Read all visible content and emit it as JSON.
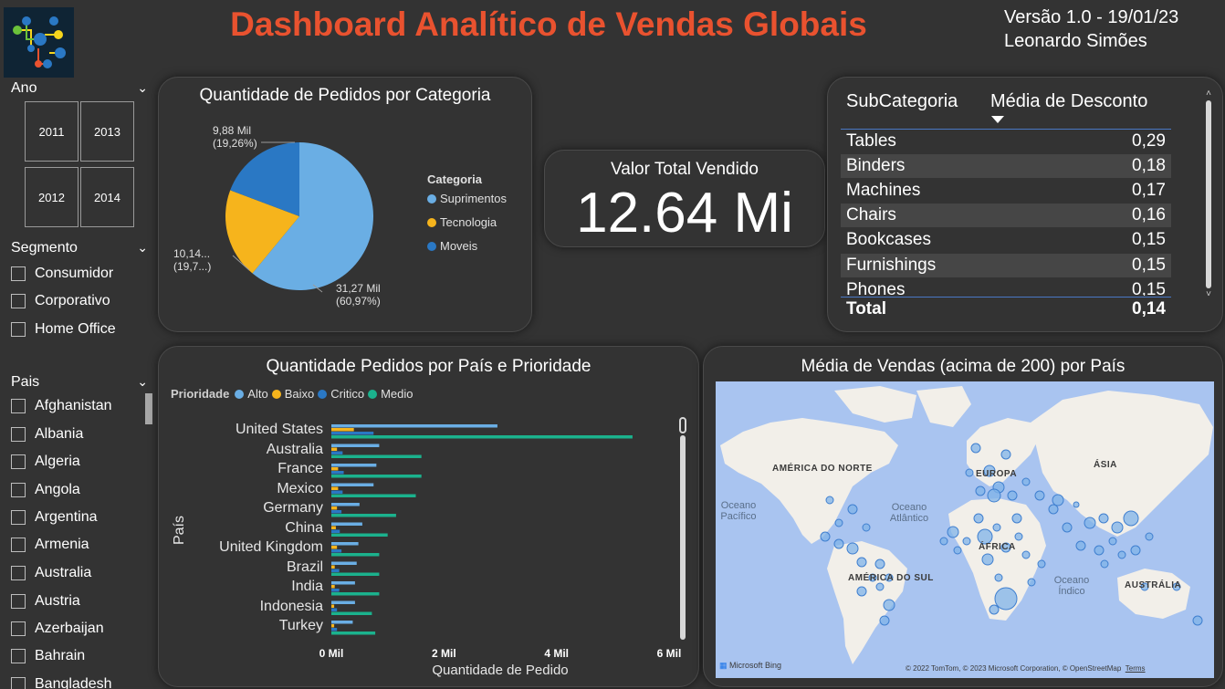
{
  "header": {
    "title": "Dashboard Analítico de Vendas Globais",
    "version": "Versão 1.0 - 19/01/23",
    "author": "Leonardo Simões",
    "title_color": "#e9522f"
  },
  "slicers": {
    "ano": {
      "label": "Ano",
      "years": [
        "2011",
        "2013",
        "2012",
        "2014"
      ]
    },
    "segmento": {
      "label": "Segmento",
      "items": [
        "Consumidor",
        "Corporativo",
        "Home Office"
      ]
    },
    "pais": {
      "label": "Pais",
      "items": [
        "Afghanistan",
        "Albania",
        "Algeria",
        "Angola",
        "Argentina",
        "Armenia",
        "Australia",
        "Austria",
        "Azerbaijan",
        "Bahrain",
        "Bangladesh"
      ]
    }
  },
  "pie": {
    "title": "Quantidade de Pedidos por Categoria",
    "legend_title": "Categoria",
    "labels": [
      {
        "value": "9,88 Mil",
        "pct": "(19,26%)"
      },
      {
        "value": "10,14...",
        "pct": "(19,7...)"
      },
      {
        "value": "31,27 Mil",
        "pct": "(60,97%)"
      }
    ],
    "chart_data": {
      "type": "pie",
      "slices": [
        {
          "name": "Suprimentos",
          "value": 31.27,
          "color": "#6aaee4"
        },
        {
          "name": "Tecnologia",
          "value": 10.14,
          "color": "#f6b41c"
        },
        {
          "name": "Moveis",
          "value": 9.88,
          "color": "#2a78c4"
        }
      ]
    }
  },
  "kpi": {
    "title": "Valor Total Vendido",
    "value": "12.64 Mi"
  },
  "table": {
    "col1": "SubCategoria",
    "col2": "Média de Desconto",
    "rows": [
      {
        "name": "Tables",
        "value": "0,29"
      },
      {
        "name": "Binders",
        "value": "0,18"
      },
      {
        "name": "Machines",
        "value": "0,17"
      },
      {
        "name": "Chairs",
        "value": "0,16"
      },
      {
        "name": "Bookcases",
        "value": "0,15"
      },
      {
        "name": "Furnishings",
        "value": "0,15"
      },
      {
        "name": "Phones",
        "value": "0,15"
      }
    ],
    "total_label": "Total",
    "total_value": "0,14"
  },
  "bar": {
    "title": "Quantidade Pedidos por País e Prioridade",
    "legend_title": "Prioridade",
    "chart_data": {
      "type": "bar",
      "xlabel": "Quantidade de Pedido",
      "ylabel": "País",
      "xlim": [
        0,
        6
      ],
      "xticks": [
        "0 Mil",
        "2 Mil",
        "4 Mil",
        "6 Mil"
      ],
      "categories": [
        "United States",
        "Australia",
        "France",
        "Mexico",
        "Germany",
        "China",
        "United Kingdom",
        "Brazil",
        "India",
        "Indonesia",
        "Turkey"
      ],
      "series": [
        {
          "name": "Alto",
          "color": "#6aaee4",
          "values": [
            2.95,
            0.85,
            0.8,
            0.75,
            0.5,
            0.55,
            0.48,
            0.45,
            0.42,
            0.42,
            0.38
          ]
        },
        {
          "name": "Baixo",
          "color": "#f6b41c",
          "values": [
            0.4,
            0.1,
            0.12,
            0.12,
            0.1,
            0.08,
            0.1,
            0.06,
            0.06,
            0.05,
            0.05
          ]
        },
        {
          "name": "Critico",
          "color": "#2a78c4",
          "values": [
            0.75,
            0.2,
            0.22,
            0.2,
            0.18,
            0.15,
            0.18,
            0.14,
            0.14,
            0.1,
            0.1
          ]
        },
        {
          "name": "Medio",
          "color": "#1bb28d",
          "values": [
            5.35,
            1.6,
            1.6,
            1.5,
            1.15,
            1.0,
            0.85,
            0.85,
            0.85,
            0.72,
            0.78
          ]
        }
      ]
    }
  },
  "map": {
    "title": "Média de Vendas (acima de 200) por País",
    "regions": [
      "AMÉRICA DO NORTE",
      "EUROPA",
      "ÁSIA",
      "ÁFRICA",
      "AMÉRICA DO SUL",
      "AUSTRÁLIA"
    ],
    "oceans": [
      "Oceano Pacífico",
      "Oceano Atlântico",
      "Oceano Índico"
    ],
    "brand": "Microsoft Bing",
    "credits": "© 2022 TomTom, © 2023 Microsoft Corporation, © OpenStreetMap",
    "terms": "Terms"
  }
}
